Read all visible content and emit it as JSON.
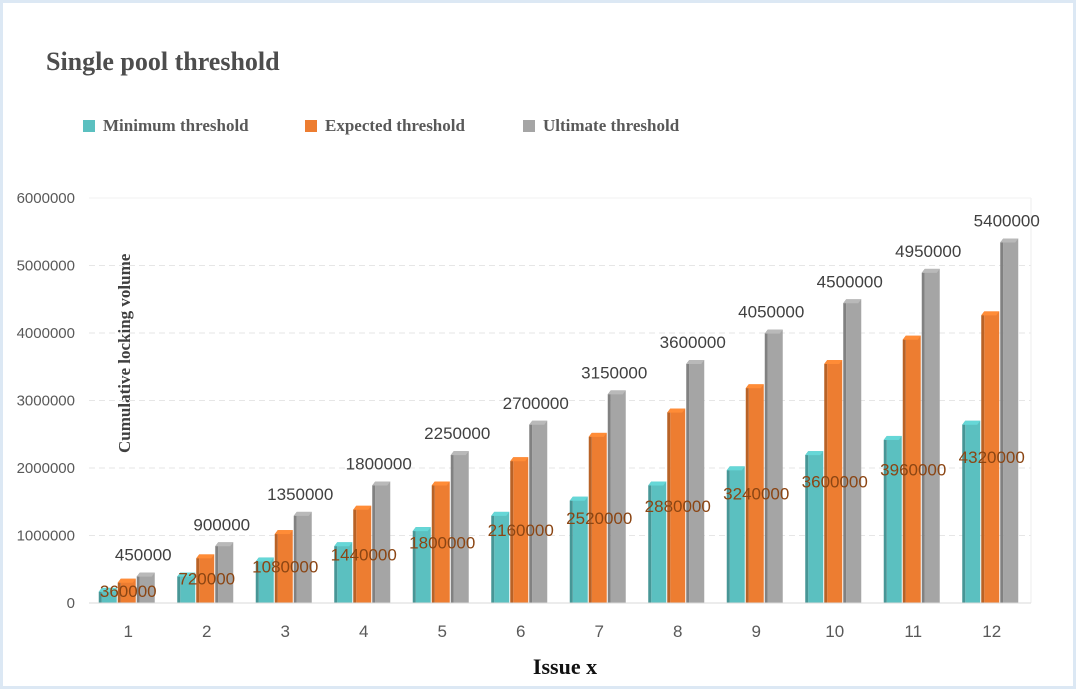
{
  "chart_data": {
    "type": "bar",
    "title": "Single pool threshold",
    "xlabel": "Issue x",
    "ylabel": "Cumulative locking volume",
    "ylim": [
      0,
      6000000
    ],
    "yticks": [
      "0",
      "1000000",
      "2000000",
      "3000000",
      "4000000",
      "5000000",
      "6000000"
    ],
    "categories": [
      "1",
      "2",
      "3",
      "4",
      "5",
      "6",
      "7",
      "8",
      "9",
      "10",
      "11",
      "12"
    ],
    "series": [
      {
        "name": "Minimum threshold",
        "color": "#5bc0c0",
        "values": [
          225000,
          450000,
          675000,
          900000,
          1125000,
          1350000,
          1575000,
          1800000,
          2025000,
          2250000,
          2475000,
          2700000
        ],
        "labels_shown": false
      },
      {
        "name": "Expected threshold",
        "color": "#ed7d31",
        "label_color": "#8b4513",
        "values": [
          360000,
          720000,
          1080000,
          1440000,
          1800000,
          2160000,
          2520000,
          2880000,
          3240000,
          3600000,
          3960000,
          4320000
        ],
        "labels_shown": true
      },
      {
        "name": "Ultimate threshold",
        "color": "#a5a5a5",
        "label_color": "#404040",
        "values": [
          450000,
          900000,
          1350000,
          1800000,
          2250000,
          2700000,
          3150000,
          3600000,
          4050000,
          4500000,
          4950000,
          5400000
        ],
        "labels_shown": true
      }
    ],
    "legend_position": "top-left",
    "grid": true
  }
}
